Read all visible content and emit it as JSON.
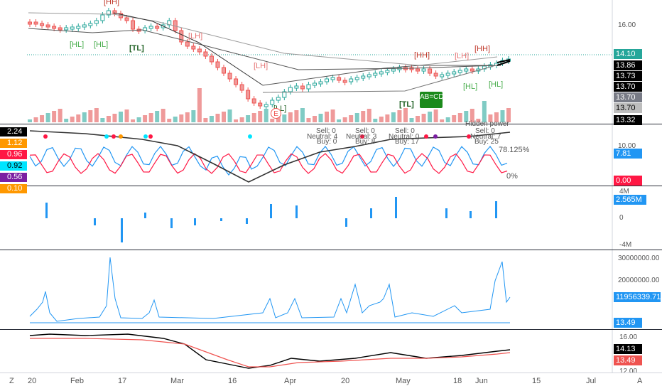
{
  "price_pane": {
    "axis_ticks": [
      "16.00"
    ],
    "tags": [
      {
        "text": "14.10",
        "bg": "#26a69a",
        "fg": "#ffffff"
      },
      {
        "text": "13.86",
        "bg": "#000000",
        "fg": "#ffffff"
      },
      {
        "text": "13.73",
        "bg": "#000000",
        "fg": "#ffffff"
      },
      {
        "text": "13.70",
        "bg": "#000000",
        "fg": "#ffffff"
      },
      {
        "text": "13.70",
        "bg": "#787b86",
        "fg": "#ffffff"
      },
      {
        "text": "13.70",
        "bg": "#bdbdbd",
        "fg": "#000000"
      },
      {
        "text": "13.32",
        "bg": "#000000",
        "fg": "#ffffff"
      }
    ],
    "labels_red": [
      "[HH]",
      "[LH]",
      "[LH]",
      "[HH]",
      "[LH]",
      "[HH]"
    ],
    "labels_green": [
      "[HL]",
      "[HL]",
      "[TL]",
      "[LL]",
      "[TL]",
      "[HL]",
      "[HL]"
    ],
    "pattern_badge": "AB=CD",
    "earnings_badge": "E"
  },
  "osc_pane": {
    "left_values": [
      {
        "text": "2.24",
        "bg": "#000000",
        "fg": "#ffffff"
      },
      {
        "text": "1.12",
        "bg": "#ff9800",
        "fg": "#ffffff"
      },
      {
        "text": "0.96",
        "bg": "#ff1744",
        "fg": "#ffffff"
      },
      {
        "text": "0.92",
        "bg": "#00e5ff",
        "fg": "#000000"
      },
      {
        "text": "0.56",
        "bg": "#7b1fa2",
        "fg": "#ffffff"
      },
      {
        "text": "0.10",
        "bg": "#ff9800",
        "fg": "#ffffff"
      }
    ],
    "axis_ticks": [
      "10.00"
    ],
    "tags": [
      {
        "text": "7.81",
        "bg": "#2196f3",
        "fg": "#ffffff"
      },
      {
        "text": "0.00",
        "bg": "#ff1744",
        "fg": "#ffffff"
      }
    ],
    "pct_high": "78.125%",
    "pct_low": "0%",
    "annotations": [
      {
        "text": "Sell: 0"
      },
      {
        "text": "Neutral: 4"
      },
      {
        "text": "Buy: 0"
      },
      {
        "text": "Sell: 0"
      },
      {
        "text": "Neutral: 3"
      },
      {
        "text": "Buy: 8"
      },
      {
        "text": "Sell: 0"
      },
      {
        "text": "Neutral: 0"
      },
      {
        "text": "Buy: 17"
      },
      {
        "text": "Hidden power"
      },
      {
        "text": "Sell: 0"
      },
      {
        "text": "Neutral: 7"
      },
      {
        "text": "Buy: 25"
      }
    ]
  },
  "flow_pane": {
    "axis_ticks": [
      "4M",
      "0",
      "-4M"
    ],
    "tag": {
      "text": "2.565M",
      "bg": "#2196f3",
      "fg": "#ffffff"
    }
  },
  "vol_pane": {
    "axis_ticks": [
      "30000000.00",
      "20000000.00"
    ],
    "tags": [
      {
        "text": "11956339.71",
        "bg": "#2196f3",
        "fg": "#ffffff"
      },
      {
        "text": "13.49",
        "bg": "#2196f3",
        "fg": "#ffffff"
      }
    ]
  },
  "ma_pane": {
    "axis_ticks": [
      "16.00",
      "12.00"
    ],
    "tags": [
      {
        "text": "14.13",
        "bg": "#000000",
        "fg": "#ffffff"
      },
      {
        "text": "13.49",
        "bg": "#ef5350",
        "fg": "#ffffff"
      }
    ]
  },
  "time_axis": {
    "first": "20",
    "labels": [
      "Feb",
      "17",
      "Mar",
      "16",
      "Apr",
      "20",
      "May",
      "18",
      "Jun",
      "15",
      "Jul"
    ]
  },
  "corner": {
    "left": "Z",
    "right": "A"
  }
}
